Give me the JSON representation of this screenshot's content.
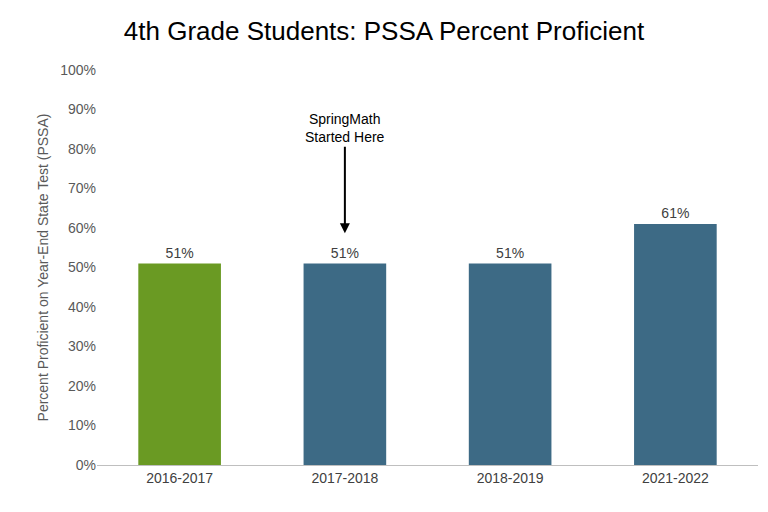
{
  "chart_data": {
    "type": "bar",
    "title": "4th Grade Students: PSSA Percent Proficient",
    "y_label": "Percent Proficient on Year-End State Test (PSSA)",
    "categories": [
      "2016-2017",
      "2017-2018",
      "2018-2019",
      "2021-2022"
    ],
    "values": [
      51,
      51,
      51,
      61
    ],
    "value_labels": [
      "51%",
      "51%",
      "51%",
      "61%"
    ],
    "colors": [
      "#6a9a23",
      "#3d6a85",
      "#3d6a85",
      "#3d6a85"
    ],
    "data_labels": true,
    "grid": false,
    "ylim": [
      0,
      100
    ],
    "yticks": [
      {
        "value": 0,
        "label": "0%"
      },
      {
        "value": 10,
        "label": "10%"
      },
      {
        "value": 20,
        "label": "20%"
      },
      {
        "value": 30,
        "label": "30%"
      },
      {
        "value": 40,
        "label": "40%"
      },
      {
        "value": 50,
        "label": "50%"
      },
      {
        "value": 60,
        "label": "60%"
      },
      {
        "value": 70,
        "label": "70%"
      },
      {
        "value": 80,
        "label": "80%"
      },
      {
        "value": 90,
        "label": "90%"
      },
      {
        "value": 100,
        "label": "100%"
      }
    ],
    "annotations": [
      {
        "text": "SpringMath\nStarted Here",
        "x": "2017-2018"
      }
    ]
  }
}
